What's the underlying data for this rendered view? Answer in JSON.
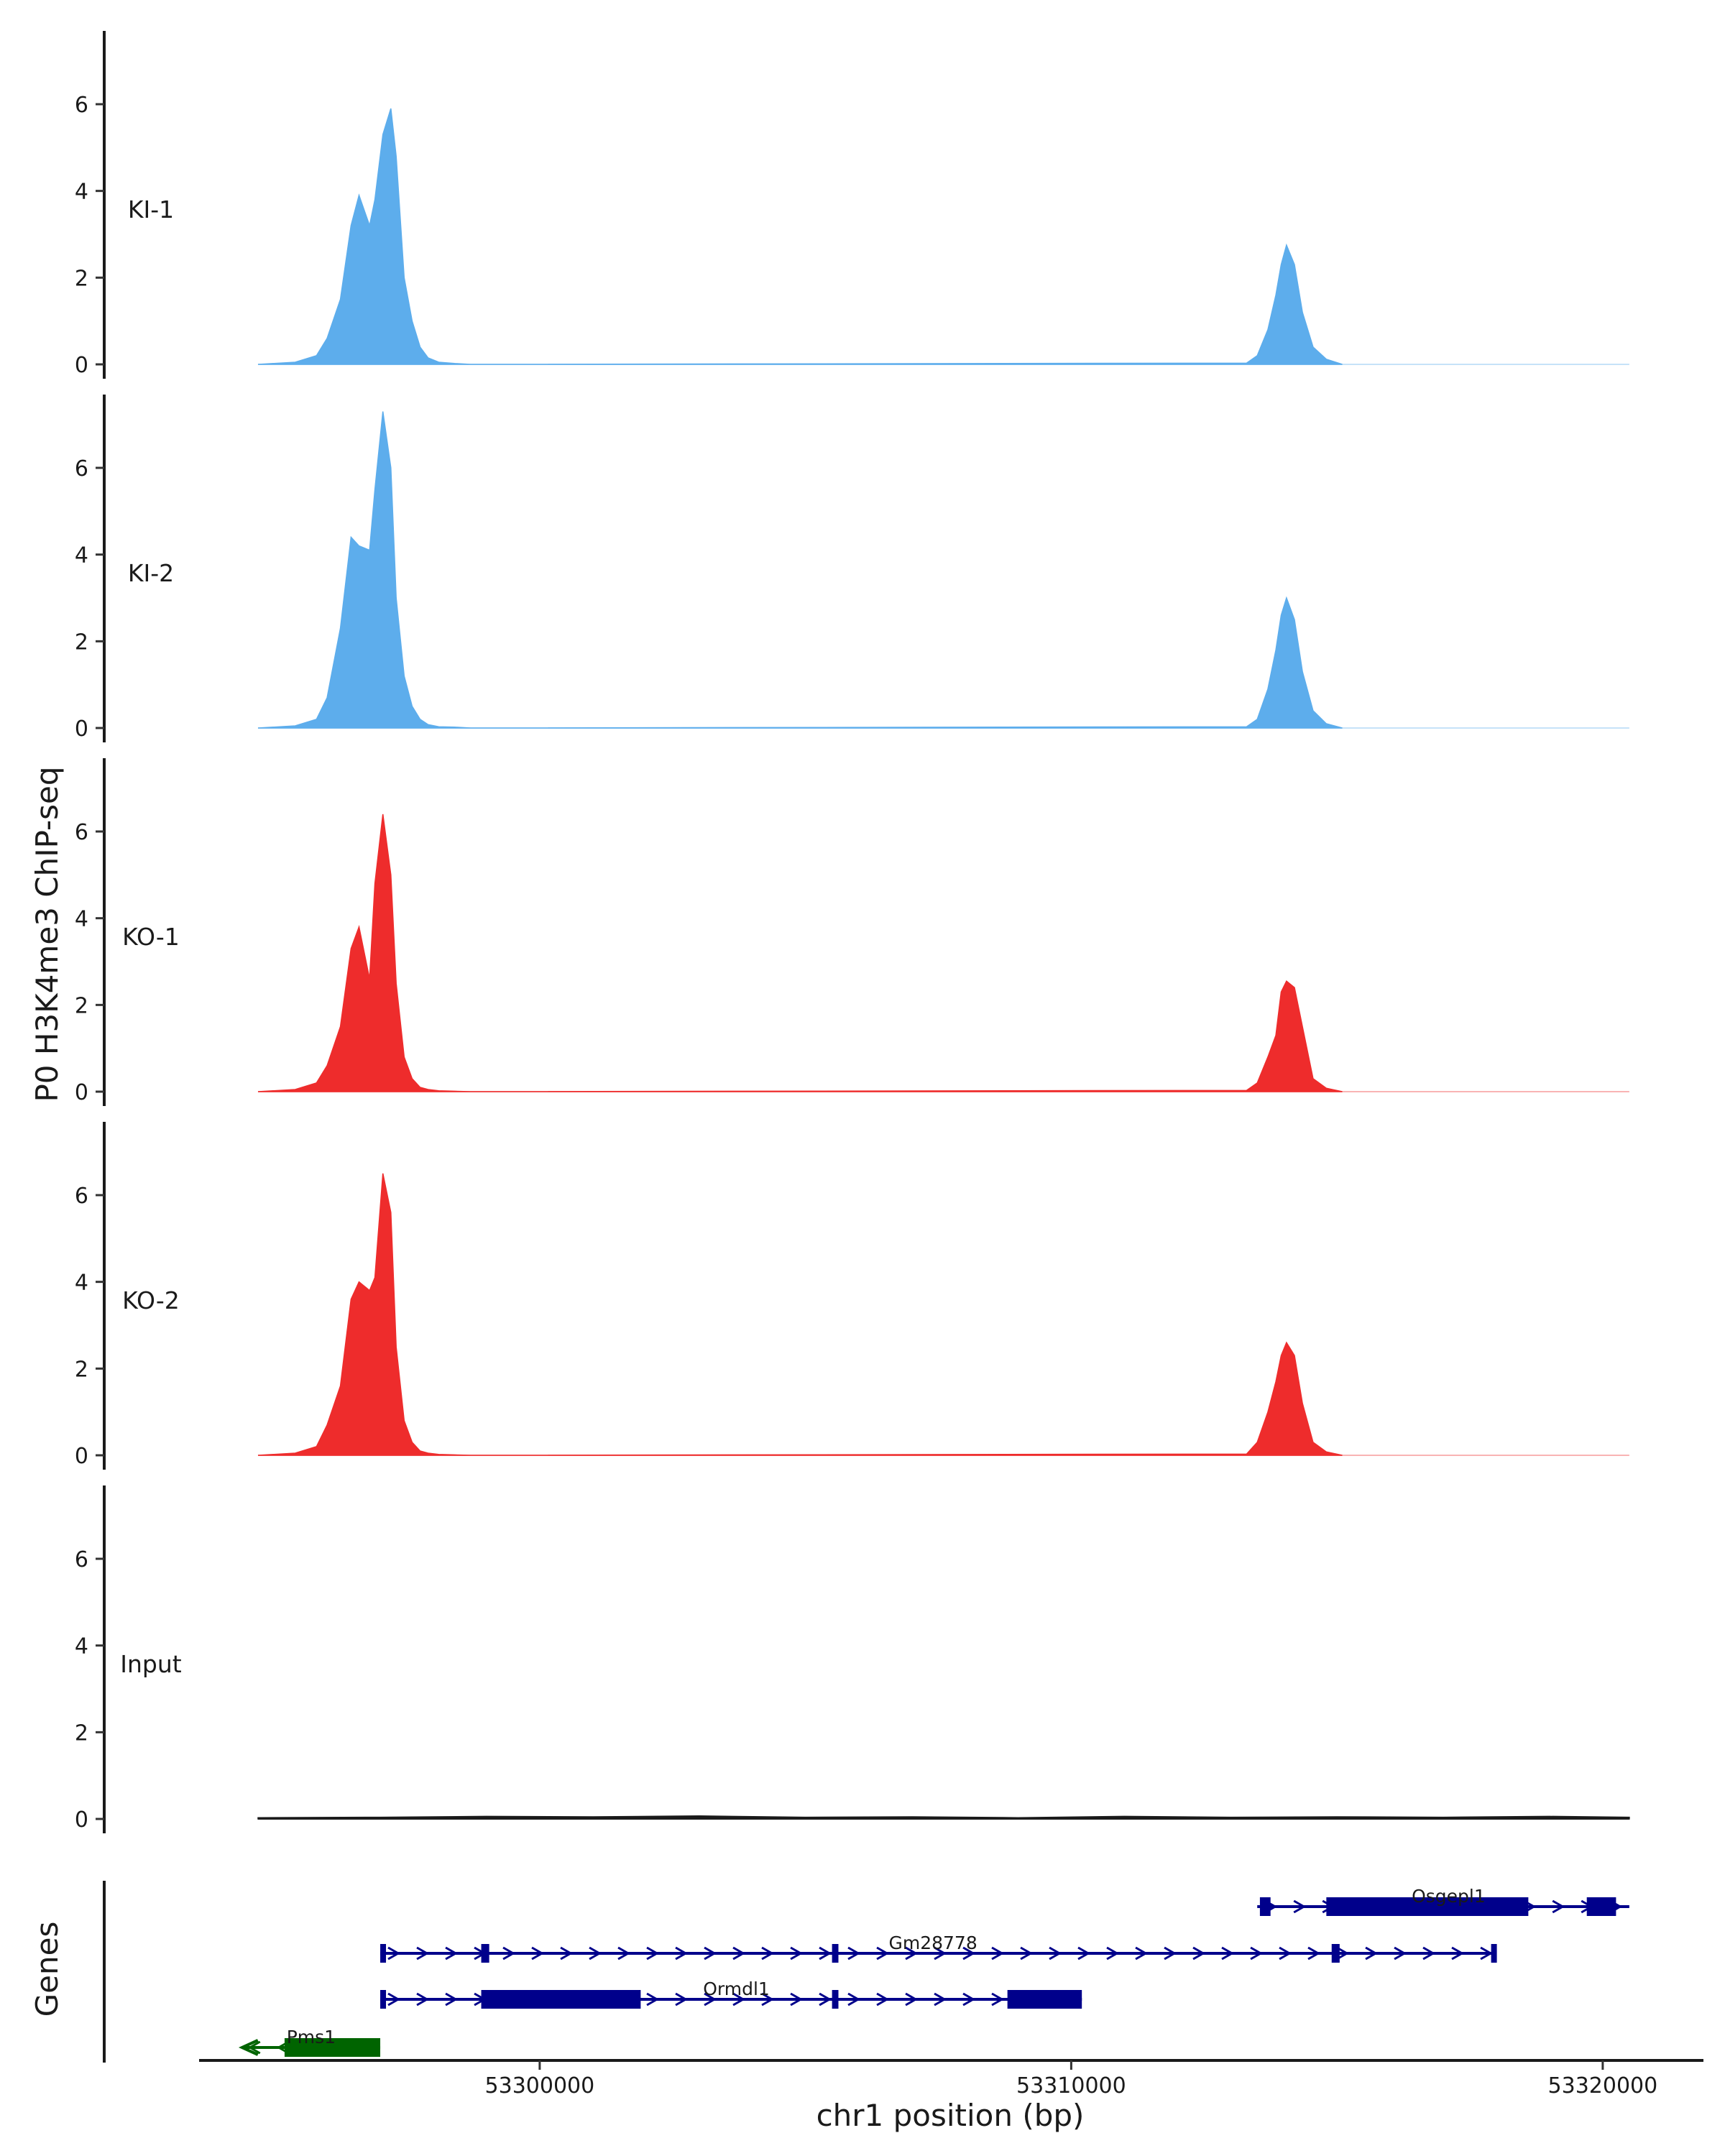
{
  "chart_data": {
    "type": "area",
    "ylabel": "P0 H3K4me3 ChIP-seq",
    "xlabel": "chr1 position (bp)",
    "genes_label": "Genes",
    "ylim": [
      0,
      7.6
    ],
    "yticks": [
      0,
      2,
      4,
      6
    ],
    "xlim": [
      53293700,
      53321800
    ],
    "xticks": [
      53300000,
      53310000,
      53320000
    ],
    "colors": {
      "KI": "#5DADEC",
      "KO": "#EE2C2C",
      "Input": "#1a1a1a",
      "gene_plus": "#00008B",
      "gene_minus": "#006400"
    },
    "tracks": [
      {
        "name": "KI-1",
        "color": "#5DADEC",
        "x": [
          53294700,
          53295400,
          53295800,
          53296000,
          53296250,
          53296450,
          53296600,
          53296800,
          53296900,
          53297050,
          53297200,
          53297300,
          53297450,
          53297600,
          53297750,
          53297900,
          53298100,
          53298400,
          53298700,
          53299000,
          53313300,
          53313500,
          53313700,
          53313850,
          53313950,
          53314050,
          53314200,
          53314350,
          53314550,
          53314800,
          53315100
        ],
        "y": [
          0,
          0.05,
          0.2,
          0.6,
          1.5,
          3.2,
          3.9,
          3.2,
          3.8,
          5.3,
          5.9,
          4.8,
          2.0,
          1.0,
          0.4,
          0.15,
          0.05,
          0.02,
          0,
          0,
          0.03,
          0.2,
          0.8,
          1.6,
          2.3,
          2.75,
          2.3,
          1.2,
          0.4,
          0.12,
          0
        ]
      },
      {
        "name": "KI-2",
        "color": "#5DADEC",
        "x": [
          53294700,
          53295400,
          53295800,
          53296000,
          53296250,
          53296450,
          53296600,
          53296800,
          53296900,
          53297050,
          53297200,
          53297300,
          53297450,
          53297600,
          53297750,
          53297900,
          53298100,
          53298400,
          53298700,
          53299000,
          53313300,
          53313500,
          53313700,
          53313850,
          53313950,
          53314050,
          53314200,
          53314350,
          53314550,
          53314800,
          53315100
        ],
        "y": [
          0,
          0.05,
          0.2,
          0.7,
          2.3,
          4.4,
          4.2,
          4.1,
          5.5,
          7.3,
          6.0,
          3.0,
          1.2,
          0.5,
          0.2,
          0.08,
          0.03,
          0.02,
          0,
          0,
          0.03,
          0.2,
          0.9,
          1.8,
          2.6,
          3.0,
          2.5,
          1.3,
          0.4,
          0.1,
          0
        ]
      },
      {
        "name": "KO-1",
        "color": "#EE2C2C",
        "x": [
          53294700,
          53295400,
          53295800,
          53296000,
          53296250,
          53296450,
          53296600,
          53296800,
          53296900,
          53297050,
          53297200,
          53297300,
          53297450,
          53297600,
          53297750,
          53297900,
          53298100,
          53298400,
          53298700,
          53299000,
          53313300,
          53313500,
          53313700,
          53313850,
          53313950,
          53314050,
          53314200,
          53314350,
          53314550,
          53314800,
          53315100
        ],
        "y": [
          0,
          0.05,
          0.2,
          0.6,
          1.5,
          3.3,
          3.8,
          2.6,
          4.8,
          6.4,
          5.0,
          2.5,
          0.8,
          0.3,
          0.1,
          0.05,
          0.02,
          0.01,
          0,
          0,
          0.03,
          0.2,
          0.8,
          1.3,
          2.3,
          2.55,
          2.4,
          1.5,
          0.3,
          0.08,
          0
        ]
      },
      {
        "name": "KO-2",
        "color": "#EE2C2C",
        "x": [
          53294700,
          53295400,
          53295800,
          53296000,
          53296250,
          53296450,
          53296600,
          53296800,
          53296900,
          53297050,
          53297200,
          53297300,
          53297450,
          53297600,
          53297750,
          53297900,
          53298100,
          53298400,
          53298700,
          53299000,
          53313300,
          53313500,
          53313700,
          53313850,
          53313950,
          53314050,
          53314200,
          53314350,
          53314550,
          53314800,
          53315100
        ],
        "y": [
          0,
          0.05,
          0.2,
          0.7,
          1.6,
          3.6,
          4.0,
          3.8,
          4.1,
          6.5,
          5.6,
          2.5,
          0.8,
          0.3,
          0.1,
          0.05,
          0.02,
          0.01,
          0,
          0,
          0.03,
          0.3,
          1.0,
          1.7,
          2.3,
          2.6,
          2.3,
          1.2,
          0.3,
          0.08,
          0
        ]
      },
      {
        "name": "Input",
        "color": "#1a1a1a",
        "x": [
          53294700,
          53297000,
          53299000,
          53301000,
          53303000,
          53305000,
          53307000,
          53309000,
          53311000,
          53313000,
          53315000,
          53317000,
          53319000,
          53320500
        ],
        "y": [
          0.03,
          0.04,
          0.06,
          0.05,
          0.07,
          0.04,
          0.05,
          0.03,
          0.06,
          0.04,
          0.05,
          0.04,
          0.06,
          0.04
        ]
      }
    ],
    "genes": [
      {
        "name": "Osgepl1",
        "strand": "+",
        "row": 0,
        "start": 53313500,
        "end": 53320500,
        "blocks": [
          [
            53313550,
            53313750
          ],
          [
            53314800,
            53318600
          ],
          [
            53319700,
            53320250
          ]
        ],
        "label_x": 53317100
      },
      {
        "name": "Gm28778",
        "strand": "+",
        "row": 1,
        "start": 53297000,
        "end": 53318000,
        "blocks": [
          [
            53297000,
            53297100
          ],
          [
            53298900,
            53299050
          ],
          [
            53305500,
            53305620
          ],
          [
            53314900,
            53315050
          ],
          [
            53317900,
            53318000
          ]
        ],
        "label_x": 53307400
      },
      {
        "name": "Ormdl1",
        "strand": "+",
        "row": 2,
        "start": 53297000,
        "end": 53310200,
        "blocks": [
          [
            53297000,
            53297100
          ],
          [
            53298900,
            53301900
          ],
          [
            53305500,
            53305620
          ],
          [
            53308800,
            53310200
          ]
        ],
        "label_x": 53303700
      },
      {
        "name": "Pms1",
        "strand": "-",
        "row": 3,
        "start": 53294400,
        "end": 53297000,
        "blocks": [
          [
            53295200,
            53297000
          ]
        ],
        "label_x": 53295700
      }
    ]
  }
}
